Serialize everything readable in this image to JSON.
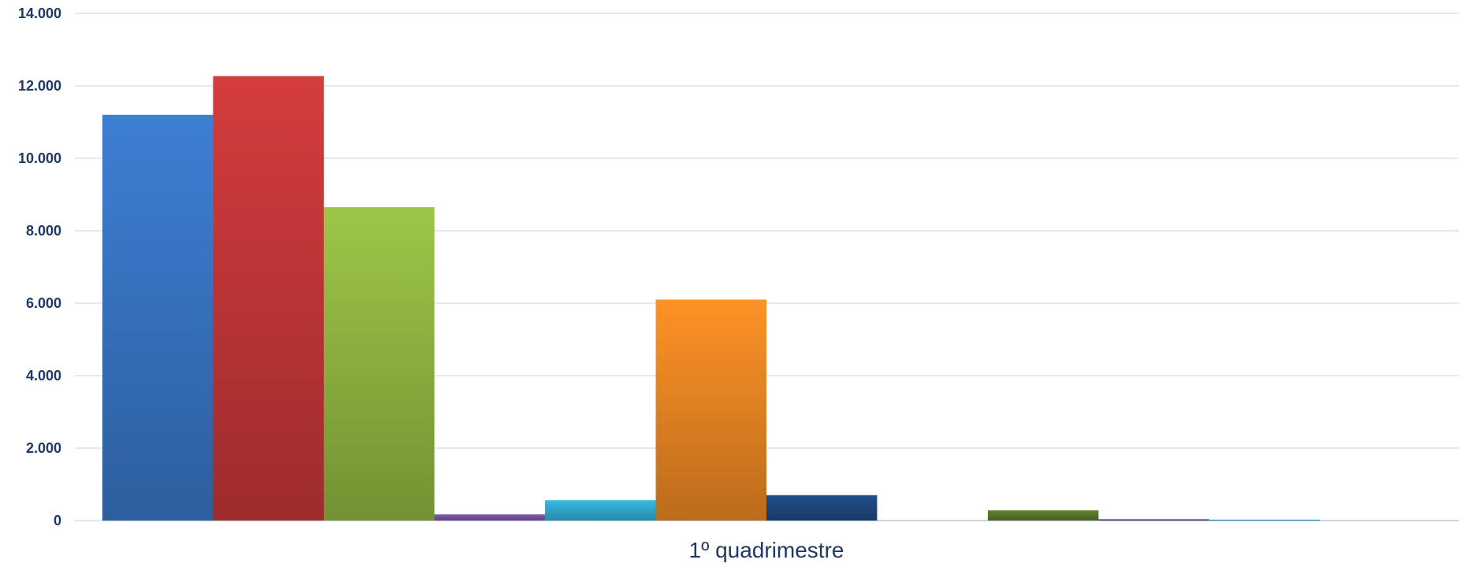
{
  "chart_data": {
    "type": "bar",
    "title": "",
    "xlabel": "",
    "ylabel": "",
    "categories": [
      "1º quadrimestre"
    ],
    "ylim": [
      0,
      14000
    ],
    "yticks": [
      0,
      2000,
      4000,
      6000,
      8000,
      10000,
      12000,
      14000
    ],
    "ytick_labels": [
      "0",
      "2.000",
      "4.000",
      "6.000",
      "8.000",
      "10.000",
      "12.000",
      "14.000"
    ],
    "grid": true,
    "legend": "none",
    "series": [
      {
        "values": [
          11200
        ],
        "color": "#3a78c9"
      },
      {
        "values": [
          12270
        ],
        "color": "#c9393a"
      },
      {
        "values": [
          8650
        ],
        "color": "#94bb43"
      },
      {
        "values": [
          170
        ],
        "color": "#7a56a6"
      },
      {
        "values": [
          560
        ],
        "color": "#34afd6"
      },
      {
        "values": [
          6100
        ],
        "color": "#f08a24"
      },
      {
        "values": [
          700
        ],
        "color": "#1f4a80"
      },
      {
        "values": [
          0
        ],
        "color": "#9c3a37"
      },
      {
        "values": [
          280
        ],
        "color": "#5b7a2a"
      },
      {
        "values": [
          35
        ],
        "color": "#4a3a78"
      },
      {
        "values": [
          25
        ],
        "color": "#2a8db0"
      }
    ]
  }
}
